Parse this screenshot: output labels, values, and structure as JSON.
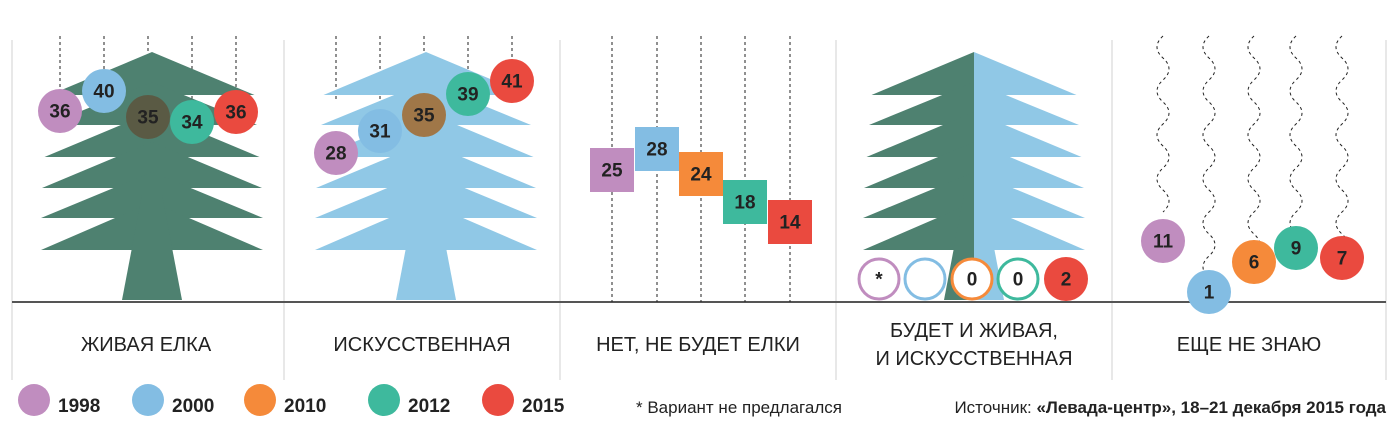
{
  "colors": {
    "1998": "#c08dbf",
    "2000": "#83bde3",
    "2010": "#f58a3a",
    "2012": "#3eb99d",
    "2015": "#ea4a3f",
    "tree_dark": "#4e8170",
    "tree_light": "#90c8e6",
    "bubble_brown": "#a07748",
    "bubble_dark": "#5a5a44"
  },
  "legend": [
    {
      "label": "1998",
      "color": "#c08dbf"
    },
    {
      "label": "2000",
      "color": "#83bde3"
    },
    {
      "label": "2010",
      "color": "#f58a3a"
    },
    {
      "label": "2012",
      "color": "#3eb99d"
    },
    {
      "label": "2015",
      "color": "#ea4a3f"
    }
  ],
  "note": "* Вариант не предлагался",
  "source": {
    "prefix": "Источник: ",
    "bold": "«Левада-центр», 18–21 декабря 2015 года"
  },
  "chart_data": {
    "type": "bar",
    "series_names": [
      "1998",
      "2000",
      "2010",
      "2012",
      "2015"
    ],
    "categories": [
      "ЖИВАЯ ЕЛКА",
      "ИСКУССТВЕННАЯ",
      "НЕТ, НЕ БУДЕТ ЕЛКИ",
      "БУДЕТ И ЖИВАЯ, И ИСКУССТВЕННАЯ",
      "ЕЩЕ НЕ ЗНАЮ"
    ],
    "panels": [
      {
        "label_lines": [
          "ЖИВАЯ ЕЛКА"
        ],
        "style": "tree_dark",
        "values": [
          {
            "year": "1998",
            "value": 36
          },
          {
            "year": "2000",
            "value": 40
          },
          {
            "year": "2010",
            "value": 35
          },
          {
            "year": "2012",
            "value": 34
          },
          {
            "year": "2015",
            "value": 36
          }
        ]
      },
      {
        "label_lines": [
          "ИСКУССТВЕННАЯ"
        ],
        "style": "tree_light",
        "values": [
          {
            "year": "1998",
            "value": 28
          },
          {
            "year": "2000",
            "value": 31
          },
          {
            "year": "2010",
            "value": 35
          },
          {
            "year": "2012",
            "value": 39
          },
          {
            "year": "2015",
            "value": 41
          }
        ]
      },
      {
        "label_lines": [
          "НЕТ, НЕ БУДЕТ ЕЛКИ"
        ],
        "style": "boxes",
        "values": [
          {
            "year": "1998",
            "value": 25
          },
          {
            "year": "2000",
            "value": 28
          },
          {
            "year": "2010",
            "value": 24
          },
          {
            "year": "2012",
            "value": 18
          },
          {
            "year": "2015",
            "value": 14
          }
        ]
      },
      {
        "label_lines": [
          "БУДЕТ И ЖИВАЯ,",
          "И ИСКУССТВЕННАЯ"
        ],
        "style": "tree_half",
        "values": [
          {
            "year": "1998",
            "value": "*"
          },
          {
            "year": "2000",
            "value": ""
          },
          {
            "year": "2010",
            "value": 0
          },
          {
            "year": "2012",
            "value": 0
          },
          {
            "year": "2015",
            "value": 2
          }
        ]
      },
      {
        "label_lines": [
          "ЕЩЕ НЕ ЗНАЮ"
        ],
        "style": "wavy",
        "values": [
          {
            "year": "1998",
            "value": 11
          },
          {
            "year": "2000",
            "value": 1
          },
          {
            "year": "2010",
            "value": 6
          },
          {
            "year": "2012",
            "value": 9
          },
          {
            "year": "2015",
            "value": 7
          }
        ]
      }
    ]
  }
}
